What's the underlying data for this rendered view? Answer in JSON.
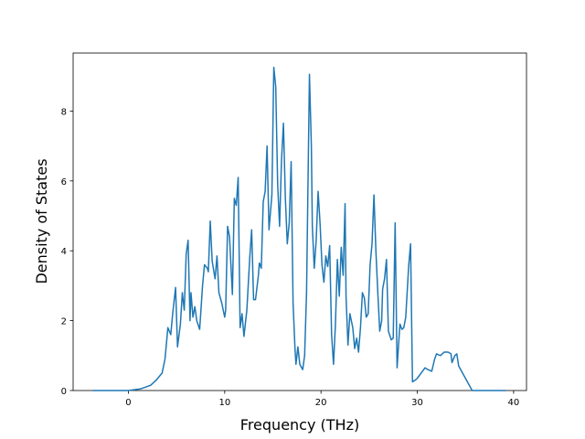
{
  "chart_data": {
    "type": "line",
    "x_label": "Frequency (THz)",
    "y_label": "Density of States",
    "color": "#1f77b4",
    "xlim": [
      -5.74,
      41.34
    ],
    "ylim": [
      0,
      9.66
    ],
    "xticks": [
      0,
      10,
      20,
      30,
      40
    ],
    "yticks": [
      0,
      2,
      4,
      6,
      8
    ],
    "x": [
      -3.7,
      0,
      1.3,
      2.3,
      2.9,
      3.5,
      3.8,
      4.1,
      4.4,
      4.6,
      4.9,
      5.1,
      5.4,
      5.6,
      5.8,
      6.0,
      6.2,
      6.4,
      6.5,
      6.7,
      6.9,
      7.1,
      7.4,
      7.7,
      7.9,
      8.2,
      8.3,
      8.5,
      8.7,
      9.0,
      9.2,
      9.4,
      9.7,
      10.0,
      10.1,
      10.3,
      10.5,
      10.8,
      11.0,
      11.2,
      11.4,
      11.6,
      11.8,
      12.0,
      12.3,
      12.6,
      12.8,
      13.0,
      13.2,
      13.5,
      13.6,
      13.8,
      14.0,
      14.2,
      14.4,
      14.6,
      14.9,
      15.1,
      15.3,
      15.5,
      15.7,
      15.9,
      16.1,
      16.3,
      16.5,
      16.7,
      16.9,
      17.1,
      17.3,
      17.4,
      17.6,
      17.8,
      18.1,
      18.3,
      18.5,
      18.8,
      19.0,
      19.1,
      19.3,
      19.5,
      19.7,
      19.9,
      20.1,
      20.3,
      20.5,
      20.7,
      20.9,
      21.1,
      21.3,
      21.5,
      21.7,
      21.9,
      22.1,
      22.3,
      22.5,
      22.6,
      22.8,
      23.0,
      23.3,
      23.5,
      23.7,
      23.9,
      24.1,
      24.3,
      24.5,
      24.7,
      24.9,
      25.1,
      25.3,
      25.5,
      25.7,
      25.9,
      26.1,
      26.3,
      26.4,
      26.6,
      26.8,
      27.0,
      27.3,
      27.5,
      27.7,
      27.9,
      28.1,
      28.2,
      28.4,
      28.6,
      28.8,
      29.1,
      29.3,
      29.5,
      29.8,
      30.0,
      30.4,
      30.8,
      31.1,
      31.5,
      31.8,
      32.0,
      32.4,
      32.8,
      33.2,
      33.5,
      33.6,
      33.9,
      34.1,
      34.3,
      34.7,
      35.1,
      35.5,
      35.7,
      37.8,
      39.2
    ],
    "values": [
      0,
      0,
      0.05,
      0.15,
      0.3,
      0.5,
      0.9,
      1.8,
      1.6,
      2.2,
      2.95,
      1.25,
      1.9,
      2.8,
      2.3,
      3.9,
      4.3,
      2.0,
      2.8,
      2.1,
      2.4,
      2.0,
      1.75,
      3.0,
      3.6,
      3.5,
      3.4,
      4.85,
      3.7,
      3.2,
      3.85,
      2.8,
      2.5,
      2.1,
      2.3,
      4.7,
      4.4,
      2.75,
      5.5,
      5.3,
      6.1,
      1.8,
      2.2,
      1.55,
      2.3,
      3.8,
      4.6,
      2.6,
      2.6,
      3.3,
      3.65,
      3.5,
      5.4,
      5.7,
      7.0,
      4.6,
      5.6,
      9.25,
      8.7,
      5.9,
      4.7,
      6.6,
      7.65,
      5.5,
      4.2,
      4.8,
      6.55,
      2.5,
      1.2,
      0.75,
      1.25,
      0.75,
      0.6,
      1.0,
      2.8,
      9.05,
      7.0,
      4.7,
      3.5,
      4.3,
      5.7,
      4.8,
      3.6,
      3.1,
      3.85,
      3.55,
      4.15,
      1.6,
      0.75,
      1.9,
      3.75,
      2.7,
      4.1,
      3.3,
      5.35,
      2.7,
      1.3,
      2.2,
      1.8,
      1.2,
      1.5,
      1.1,
      1.8,
      2.8,
      2.65,
      2.1,
      2.2,
      3.6,
      4.2,
      5.6,
      4.0,
      2.8,
      1.7,
      2.0,
      2.9,
      3.2,
      3.75,
      1.7,
      1.45,
      1.5,
      4.8,
      0.65,
      1.5,
      1.9,
      1.75,
      1.8,
      2.1,
      3.55,
      4.2,
      0.25,
      0.3,
      0.35,
      0.5,
      0.65,
      0.6,
      0.55,
      0.9,
      1.05,
      1.0,
      1.1,
      1.1,
      1.05,
      0.8,
      1.0,
      1.05,
      0.7,
      0.5,
      0.3,
      0.1,
      0,
      0,
      0
    ]
  }
}
